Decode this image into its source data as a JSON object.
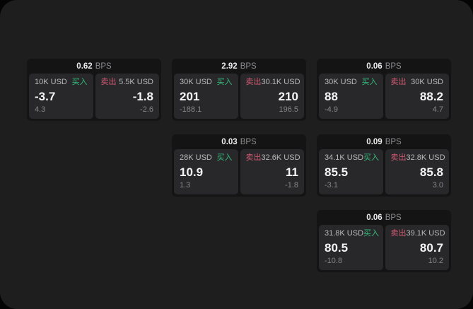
{
  "labels": {
    "bps": "BPS",
    "buy": "买入",
    "sell": "卖出"
  },
  "colors": {
    "panel_bg": "#1e1e1f",
    "card_bg": "#141415",
    "tile_bg": "#28282a",
    "buy_green": "#35bd7d",
    "sell_red": "#d05a73",
    "value_white": "#f4f4f5",
    "muted_gray": "#85858a"
  },
  "cards": [
    {
      "bps": "0.62",
      "buy": {
        "amount": "10K USD",
        "value": "-3.7",
        "delta": "4.3"
      },
      "sell": {
        "amount": "5.5K USD",
        "value": "-1.8",
        "delta": "-2.6"
      }
    },
    {
      "bps": "2.92",
      "buy": {
        "amount": "30K USD",
        "value": "201",
        "delta": "-188.1"
      },
      "sell": {
        "amount": "30.1K USD",
        "value": "210",
        "delta": "196.5"
      }
    },
    {
      "bps": "0.06",
      "buy": {
        "amount": "30K USD",
        "value": "88",
        "delta": "-4.9"
      },
      "sell": {
        "amount": "30K USD",
        "value": "88.2",
        "delta": "4.7"
      }
    },
    {
      "bps": "0.03",
      "buy": {
        "amount": "28K USD",
        "value": "10.9",
        "delta": "1.3"
      },
      "sell": {
        "amount": "32.6K USD",
        "value": "11",
        "delta": "-1.8"
      }
    },
    {
      "bps": "0.09",
      "buy": {
        "amount": "34.1K USD",
        "value": "85.5",
        "delta": "-3.1"
      },
      "sell": {
        "amount": "32.8K USD",
        "value": "85.8",
        "delta": "3.0"
      }
    },
    {
      "bps": "0.06",
      "buy": {
        "amount": "31.8K USD",
        "value": "80.5",
        "delta": "-10.8"
      },
      "sell": {
        "amount": "39.1K USD",
        "value": "80.7",
        "delta": "10.2"
      }
    }
  ]
}
